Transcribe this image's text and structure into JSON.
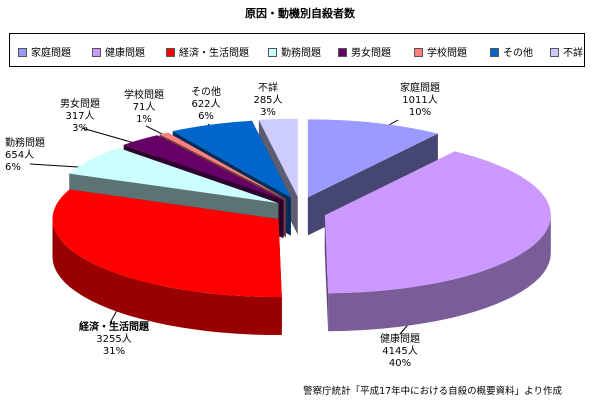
{
  "title": "原因・動機別自殺者数",
  "source": "警察庁統計「平成17年中における自殺の概要資料」より作成",
  "chart_data": {
    "type": "pie",
    "three_d": true,
    "exploded": true,
    "legend_position": "top",
    "slices": [
      {
        "name": "家庭問題",
        "count_label": "1011人",
        "percent_label": "10%",
        "value": 1011,
        "color": "#9b9bff"
      },
      {
        "name": "健康問題",
        "count_label": "4145人",
        "percent_label": "40%",
        "value": 4145,
        "color": "#cc99ff"
      },
      {
        "name": "経済・生活問題",
        "count_label": "3255人",
        "percent_label": "31%",
        "value": 3255,
        "color": "#ff0000"
      },
      {
        "name": "勤務問題",
        "count_label": "654人",
        "percent_label": "6%",
        "value": 654,
        "color": "#ccffff"
      },
      {
        "name": "男女問題",
        "count_label": "317人",
        "percent_label": "3%",
        "value": 317,
        "color": "#660066"
      },
      {
        "name": "学校問題",
        "count_label": "71人",
        "percent_label": "1%",
        "value": 71,
        "color": "#ff8080"
      },
      {
        "name": "その他",
        "count_label": "622人",
        "percent_label": "6%",
        "value": 622,
        "color": "#0066cc"
      },
      {
        "name": "不詳",
        "count_label": "285人",
        "percent_label": "3%",
        "value": 285,
        "color": "#ccccff"
      }
    ]
  }
}
